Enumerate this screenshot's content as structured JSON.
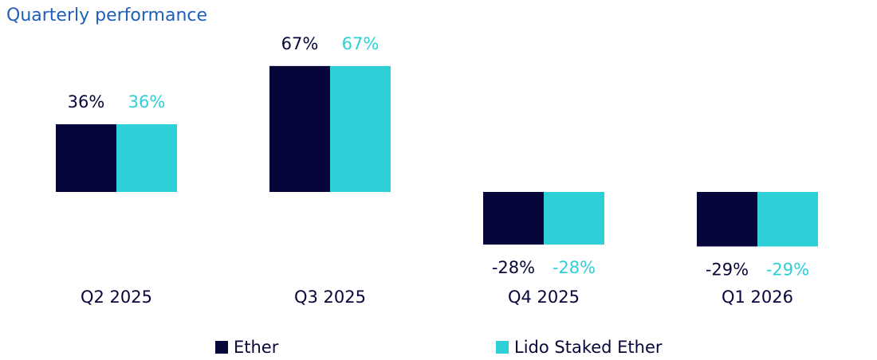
{
  "chart_data": {
    "type": "bar",
    "title": "Quarterly performance",
    "categories": [
      "Q2 2025",
      "Q3 2025",
      "Q4 2025",
      "Q1 2026"
    ],
    "series": [
      {
        "name": "Ether",
        "color": "#07063b",
        "values": [
          36,
          67,
          -28,
          -29
        ],
        "value_labels": [
          "36%",
          "67%",
          "-28%",
          "-29%"
        ]
      },
      {
        "name": "Lido Staked Ether",
        "color": "#2ecfd6",
        "values": [
          36,
          67,
          -28,
          -29
        ],
        "value_labels": [
          "36%",
          "67%",
          "-28%",
          "-29%"
        ]
      }
    ]
  }
}
